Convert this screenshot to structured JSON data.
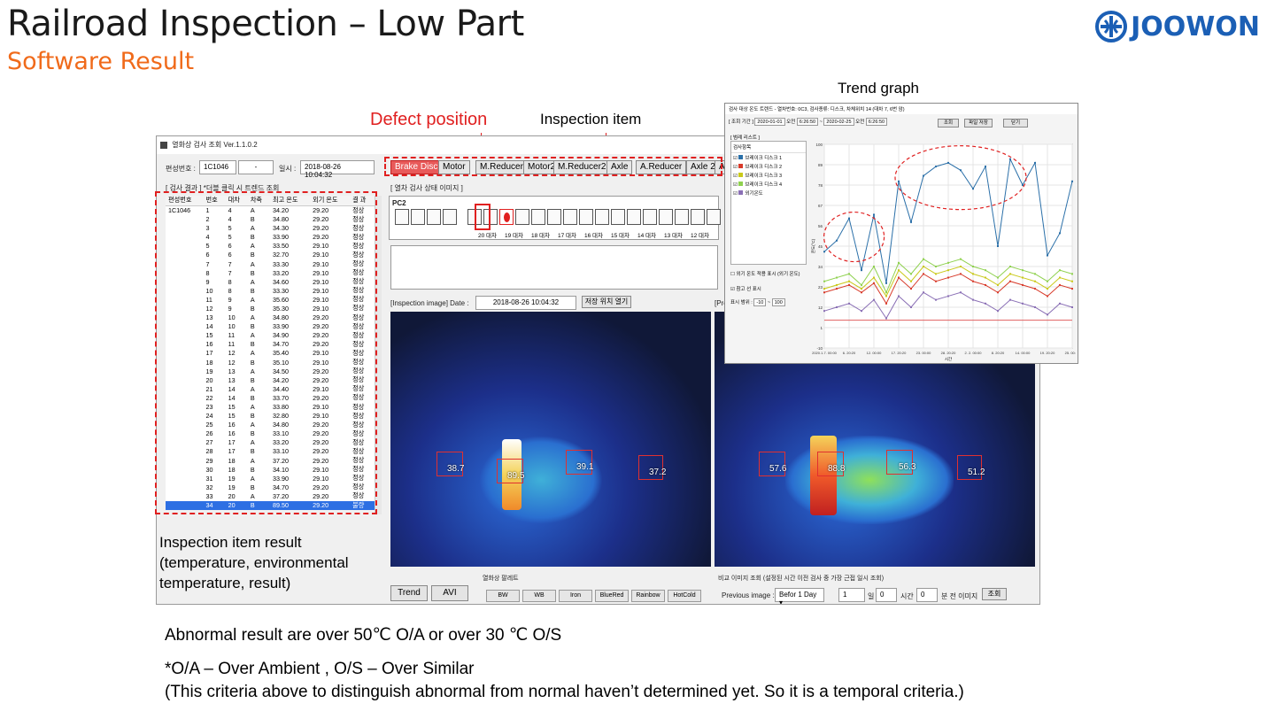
{
  "slide": {
    "title": "Railroad Inspection – Low Part",
    "subtitle": "Software Result",
    "logo": "JOOWON"
  },
  "callouts": {
    "trend_graph": "Trend graph",
    "defect_position": "Defect position",
    "inspection_item": "Inspection item",
    "inspection_item_result": "Inspection item result (temperature, environmental temperature, result)"
  },
  "notes": {
    "line1": "Abnormal result are over  50℃ O/A or over 30 ℃ O/S",
    "line2": "*O/A – Over Ambient  ,  O/S – Over Similar",
    "line3": "(This criteria above to distinguish abnormal from normal haven’t determined yet. So it is a temporal criteria.)"
  },
  "app": {
    "window_title": "열화상 검사 조회 Ver.1.1.0.2",
    "train_no_label": "편성번호 :",
    "train_no_value": "1C1046",
    "train_no_extra": "-",
    "datetime_label": "일시 :",
    "datetime_value": "2018-08-26  10:04:32",
    "results_heading": "[ 검사 결과 ] *더블 클릭 시 트렌드 조회",
    "status_image_heading": "[ 열차 검사 상태 이미지 ]",
    "table_headers": [
      "편성번호",
      "번호",
      "대차",
      "차축",
      "최고 온도",
      "외기 온도",
      "결 과"
    ],
    "table_rows": [
      [
        "1C1046",
        "1",
        "4",
        "A",
        "34.20",
        "29.20",
        "정상"
      ],
      [
        "",
        "2",
        "4",
        "B",
        "34.80",
        "29.20",
        "정상"
      ],
      [
        "",
        "3",
        "5",
        "A",
        "34.30",
        "29.20",
        "정상"
      ],
      [
        "",
        "4",
        "5",
        "B",
        "33.90",
        "29.20",
        "정상"
      ],
      [
        "",
        "5",
        "6",
        "A",
        "33.50",
        "29.10",
        "정상"
      ],
      [
        "",
        "6",
        "6",
        "B",
        "32.70",
        "29.10",
        "정상"
      ],
      [
        "",
        "7",
        "7",
        "A",
        "33.30",
        "29.10",
        "정상"
      ],
      [
        "",
        "8",
        "7",
        "B",
        "33.20",
        "29.10",
        "정상"
      ],
      [
        "",
        "9",
        "8",
        "A",
        "34.60",
        "29.10",
        "정상"
      ],
      [
        "",
        "10",
        "8",
        "B",
        "33.30",
        "29.10",
        "정상"
      ],
      [
        "",
        "11",
        "9",
        "A",
        "35.60",
        "29.10",
        "정상"
      ],
      [
        "",
        "12",
        "9",
        "B",
        "35.30",
        "29.10",
        "정상"
      ],
      [
        "",
        "13",
        "10",
        "A",
        "34.80",
        "29.20",
        "정상"
      ],
      [
        "",
        "14",
        "10",
        "B",
        "33.90",
        "29.20",
        "정상"
      ],
      [
        "",
        "15",
        "11",
        "A",
        "34.90",
        "29.20",
        "정상"
      ],
      [
        "",
        "16",
        "11",
        "B",
        "34.70",
        "29.20",
        "정상"
      ],
      [
        "",
        "17",
        "12",
        "A",
        "35.40",
        "29.10",
        "정상"
      ],
      [
        "",
        "18",
        "12",
        "B",
        "35.10",
        "29.10",
        "정상"
      ],
      [
        "",
        "19",
        "13",
        "A",
        "34.50",
        "29.20",
        "정상"
      ],
      [
        "",
        "20",
        "13",
        "B",
        "34.20",
        "29.20",
        "정상"
      ],
      [
        "",
        "21",
        "14",
        "A",
        "34.40",
        "29.10",
        "정상"
      ],
      [
        "",
        "22",
        "14",
        "B",
        "33.70",
        "29.20",
        "정상"
      ],
      [
        "",
        "23",
        "15",
        "A",
        "33.80",
        "29.10",
        "정상"
      ],
      [
        "",
        "24",
        "15",
        "B",
        "32.80",
        "29.10",
        "정상"
      ],
      [
        "",
        "25",
        "16",
        "A",
        "34.80",
        "29.20",
        "정상"
      ],
      [
        "",
        "26",
        "16",
        "B",
        "33.10",
        "29.20",
        "정상"
      ],
      [
        "",
        "27",
        "17",
        "A",
        "33.20",
        "29.20",
        "정상"
      ],
      [
        "",
        "28",
        "17",
        "B",
        "33.10",
        "29.20",
        "정상"
      ],
      [
        "",
        "29",
        "18",
        "A",
        "37.20",
        "29.20",
        "정상"
      ],
      [
        "",
        "30",
        "18",
        "B",
        "34.10",
        "29.10",
        "정상"
      ],
      [
        "",
        "31",
        "19",
        "A",
        "33.90",
        "29.10",
        "정상"
      ],
      [
        "",
        "32",
        "19",
        "B",
        "34.70",
        "29.20",
        "정상"
      ],
      [
        "",
        "33",
        "20",
        "A",
        "37.20",
        "29.20",
        "정상"
      ],
      [
        "",
        "34",
        "20",
        "B",
        "89.50",
        "29.20",
        "불량"
      ]
    ],
    "inspection_items": [
      "Brake Disc",
      "Motor",
      "M.Reducer",
      "Motor2",
      "M.Reducer2",
      "Axle",
      "A.Reducer",
      "Axle 2",
      "A.R"
    ],
    "train_label": "PC2",
    "car_labels": [
      "20 대차",
      "19 대차",
      "18 대차",
      "17 대차",
      "16 대차",
      "15 대차",
      "14 대차",
      "13 대차",
      "12 대차"
    ],
    "inspection_image_label": "[Inspection image] Date :",
    "inspection_image_date": "2018-08-26  10:04:32",
    "open_folder_button": "저장 위치 열기",
    "previous_label": "[Pre",
    "thermal_left_values": [
      "38.7",
      "89.5",
      "39.1",
      "37.2"
    ],
    "thermal_right_values": [
      "57.6",
      "88.8",
      "56.3",
      "51.2"
    ],
    "trend_button": "Trend",
    "avi_button": "AVI",
    "palette_heading": "열화상 팔레트",
    "palettes": [
      "BW",
      "WB",
      "Iron",
      "BlueRed",
      "Rainbow",
      "HotCold"
    ],
    "compare_heading": "비교 이미지 조회 (설정된 시간 이전 검사 중 가장 근접 일시 조회)",
    "previous_image_label": "Previous image :",
    "previous_image_select": "Befor 1 Day",
    "day_value": "1",
    "day_unit": "일",
    "hour_value": "0",
    "hour_unit": "시간",
    "min_value": "0",
    "min_unit": "분 전 이미지",
    "search_button": "조회"
  },
  "trend_window": {
    "title": "검사 대상 온도 트렌드 - 열차번호: 0C3, 검사종류: 디스크, 차체위치 14 (대차 7, 6번 암)",
    "period_label": "[ 조회 기간 ]",
    "start_date": "2020-01-01",
    "start_ampm": "오전",
    "start_time": "6:26:50",
    "end_date": "2020-02-25",
    "end_ampm": "오전",
    "end_time": "6:26:50",
    "search_button": "조회",
    "save_button": "파일 저장",
    "close_button": "닫기",
    "legend_heading": "[ 범례 리스트 ]",
    "list_heading": "검사항목",
    "legend_items": [
      "브레이크 디스크 1",
      "브레이크 디스크 2",
      "브레이크 디스크 3",
      "브레이크 디스크 4",
      "외기온도"
    ],
    "ambient_checkbox": "외기 온도 적용 표시 (외기 온도)",
    "ref_line_checkbox": "참고 선 표시",
    "range_label": "표시 범위 :",
    "range_from": "-10",
    "range_to": "100",
    "y_axis_label": "온도(°C)",
    "x_axis_label": "시간",
    "y_ticks": [
      "100",
      "89",
      "78",
      "67",
      "56",
      "45",
      "34",
      "23",
      "12",
      "1",
      "-10"
    ],
    "x_ticks": [
      "2020.1.7. 00:00",
      "6. 20:20",
      "12. 00:00",
      "17. 20:20",
      "23. 00:00",
      "28. 20:20",
      "2. 2. 00:00",
      "8. 20:20",
      "14. 00:00",
      "19. 20:20",
      "25. 00:00"
    ]
  },
  "chart_data": {
    "type": "line",
    "ylim": [
      -10,
      100
    ],
    "x_ticks": [
      "2020.1.7. 00:00",
      "6. 20:20",
      "12. 00:00",
      "17. 20:20",
      "23. 00:00",
      "28. 20:20",
      "2. 2. 00:00",
      "8. 20:20",
      "14. 00:00",
      "19. 20:20",
      "25. 00:00"
    ],
    "ylabel": "온도(°C)",
    "xlabel": "시간",
    "series": [
      {
        "name": "브레이크 디스크 1",
        "color": "#2a6fa8",
        "values": [
          42,
          48,
          60,
          32,
          62,
          25,
          80,
          58,
          83,
          88,
          90,
          86,
          76,
          88,
          45,
          92,
          78,
          90,
          40,
          52,
          80
        ]
      },
      {
        "name": "브레이크 디스크 2",
        "color": "#d83a2a",
        "values": [
          20,
          22,
          24,
          20,
          25,
          14,
          28,
          22,
          30,
          26,
          28,
          30,
          26,
          24,
          20,
          26,
          24,
          22,
          18,
          24,
          22
        ]
      },
      {
        "name": "브레이크 디스크 3",
        "color": "#c9c91a",
        "values": [
          22,
          24,
          26,
          22,
          28,
          18,
          32,
          26,
          34,
          30,
          32,
          34,
          30,
          28,
          24,
          30,
          28,
          26,
          22,
          28,
          26
        ]
      },
      {
        "name": "브레이크 디스크 4",
        "color": "#8fd14f",
        "values": [
          26,
          28,
          30,
          24,
          34,
          20,
          36,
          30,
          38,
          34,
          36,
          38,
          34,
          32,
          28,
          34,
          32,
          30,
          26,
          32,
          30
        ]
      },
      {
        "name": "외기온도",
        "color": "#8a6fb5",
        "values": [
          10,
          12,
          14,
          10,
          16,
          6,
          18,
          12,
          20,
          16,
          18,
          20,
          16,
          14,
          10,
          16,
          14,
          12,
          8,
          14,
          12
        ]
      }
    ],
    "reference_line": 5
  }
}
